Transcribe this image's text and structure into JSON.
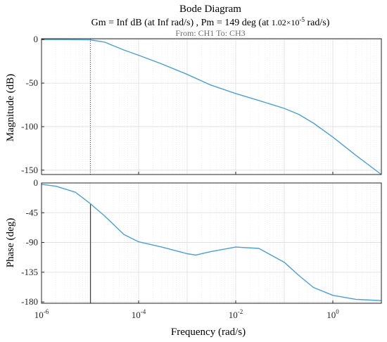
{
  "chart_data": {
    "type": "line",
    "title": "Bode Diagram",
    "subtitle_parts": [
      "Gm = Inf dB (at Inf rad/s) ,  Pm = 149 deg (at ",
      "1.02×10",
      "-5",
      " rad/s)"
    ],
    "io_label": "From: CH1  To: CH3",
    "xlabel": "Frequency  (rad/s)",
    "x_scale": "log",
    "xlim": [
      1e-06,
      10
    ],
    "x_ticks": [
      {
        "value": 1e-06,
        "base": "10",
        "exp": "-6"
      },
      {
        "value": 0.0001,
        "base": "10",
        "exp": "-4"
      },
      {
        "value": 0.01,
        "base": "10",
        "exp": "-2"
      },
      {
        "value": 1,
        "base": "10",
        "exp": "0"
      }
    ],
    "grid": true,
    "line_color": "#4a9fd8",
    "margin_marker_color": "#404040",
    "phase_margin_freq": 1.02e-05,
    "phase_margin_deg": 149,
    "magnitude": {
      "ylabel": "Magnitude (dB)",
      "ylim": [
        -155,
        1
      ],
      "yticks": [
        0,
        -50,
        -100,
        -150
      ],
      "points": [
        [
          1e-06,
          0
        ],
        [
          3e-06,
          0
        ],
        [
          1e-05,
          -0.3
        ],
        [
          2e-05,
          -3
        ],
        [
          3e-05,
          -7
        ],
        [
          5e-05,
          -12
        ],
        [
          0.0001,
          -18
        ],
        [
          0.0003,
          -28
        ],
        [
          0.001,
          -40
        ],
        [
          0.003,
          -52
        ],
        [
          0.01,
          -62
        ],
        [
          0.03,
          -70
        ],
        [
          0.1,
          -79
        ],
        [
          0.2,
          -86
        ],
        [
          0.4,
          -96
        ],
        [
          1,
          -112
        ],
        [
          3,
          -133
        ],
        [
          10,
          -155
        ]
      ]
    },
    "phase": {
      "ylabel": "Phase (deg)",
      "ylim": [
        -182,
        0
      ],
      "yticks": [
        0,
        -45,
        -90,
        -135,
        -180
      ],
      "points": [
        [
          1e-06,
          -2
        ],
        [
          2e-06,
          -5
        ],
        [
          5e-06,
          -14
        ],
        [
          1e-05,
          -31
        ],
        [
          2e-05,
          -50
        ],
        [
          5e-05,
          -78
        ],
        [
          0.0001,
          -89
        ],
        [
          0.0003,
          -97
        ],
        [
          0.001,
          -107
        ],
        [
          0.0015,
          -109
        ],
        [
          0.003,
          -104
        ],
        [
          0.01,
          -97
        ],
        [
          0.03,
          -99
        ],
        [
          0.1,
          -120
        ],
        [
          0.2,
          -140
        ],
        [
          0.4,
          -158
        ],
        [
          1,
          -170
        ],
        [
          3,
          -176
        ],
        [
          10,
          -178
        ]
      ]
    }
  }
}
